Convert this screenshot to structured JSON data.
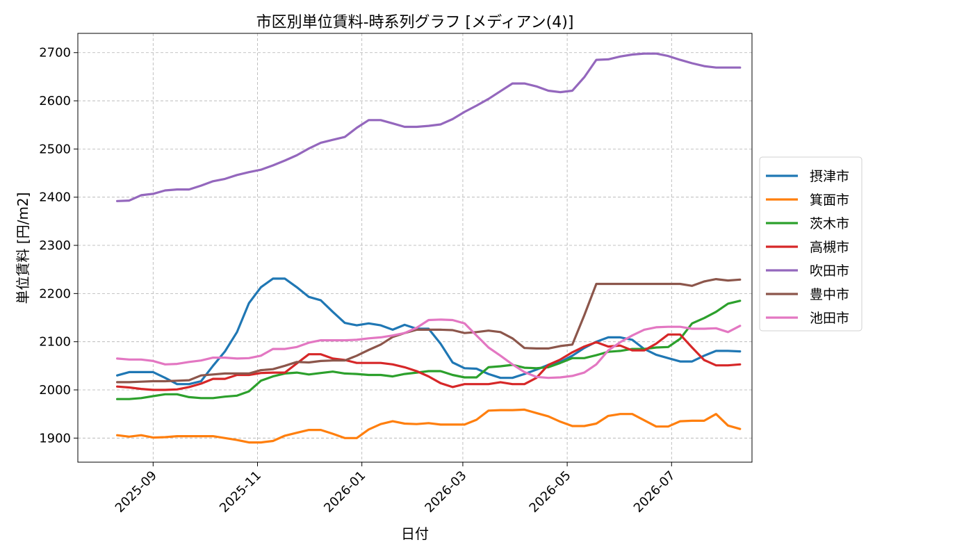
{
  "chart_data": {
    "type": "line",
    "title": "市区別単位賃料-時系列グラフ [メディアン(4)]",
    "xlabel": "日付",
    "ylabel": "単位賃料 [円/m2]",
    "ylim": [
      1850,
      2740
    ],
    "yticks": [
      1900,
      2000,
      2100,
      2200,
      2300,
      2400,
      2500,
      2600,
      2700
    ],
    "xlim": [
      "2025-07-19",
      "2026-08-17"
    ],
    "xticks": [
      "2025-09",
      "2025-11",
      "2026-01",
      "2026-03",
      "2026-05",
      "2026-07"
    ],
    "grid": true,
    "legend_position": "right",
    "x": [
      "2025-08-11",
      "2025-08-18",
      "2025-08-25",
      "2025-09-01",
      "2025-09-08",
      "2025-09-15",
      "2025-09-22",
      "2025-09-29",
      "2025-10-06",
      "2025-10-13",
      "2025-10-20",
      "2025-10-27",
      "2025-11-03",
      "2025-11-10",
      "2025-11-17",
      "2025-11-24",
      "2025-12-01",
      "2025-12-08",
      "2025-12-15",
      "2025-12-22",
      "2025-12-29",
      "2026-01-05",
      "2026-01-12",
      "2026-01-19",
      "2026-01-26",
      "2026-02-02",
      "2026-02-09",
      "2026-02-16",
      "2026-02-23",
      "2026-03-02",
      "2026-03-09",
      "2026-03-16",
      "2026-03-23",
      "2026-03-30",
      "2026-04-06",
      "2026-04-13",
      "2026-04-20",
      "2026-04-27",
      "2026-05-04",
      "2026-05-11",
      "2026-05-18",
      "2026-05-25",
      "2026-06-01",
      "2026-06-08",
      "2026-06-15",
      "2026-06-22",
      "2026-06-29",
      "2026-07-06",
      "2026-07-13",
      "2026-07-20",
      "2026-07-27",
      "2026-08-03",
      "2026-08-10"
    ],
    "series": [
      {
        "name": "摂津市",
        "color": "#1f77b4",
        "values": [
          2030,
          2037,
          2037,
          2037,
          2025,
          2012,
          2012,
          2018,
          2050,
          2080,
          2120,
          2180,
          2213,
          2231,
          2231,
          2213,
          2193,
          2186,
          2162,
          2139,
          2134,
          2138,
          2134,
          2125,
          2135,
          2127,
          2127,
          2096,
          2057,
          2045,
          2044,
          2033,
          2025,
          2025,
          2033,
          2042,
          2052,
          2058,
          2071,
          2087,
          2100,
          2109,
          2109,
          2104,
          2085,
          2073,
          2066,
          2059,
          2059,
          2071,
          2081,
          2081,
          2080
        ]
      },
      {
        "name": "箕面市",
        "color": "#ff7f0e",
        "values": [
          1906,
          1903,
          1906,
          1901,
          1902,
          1904,
          1904,
          1904,
          1904,
          1900,
          1896,
          1891,
          1891,
          1894,
          1905,
          1911,
          1917,
          1917,
          1909,
          1900,
          1900,
          1918,
          1929,
          1935,
          1930,
          1929,
          1931,
          1928,
          1928,
          1928,
          1938,
          1957,
          1958,
          1958,
          1959,
          1952,
          1945,
          1934,
          1925,
          1925,
          1930,
          1946,
          1950,
          1950,
          1937,
          1924,
          1924,
          1935,
          1936,
          1936,
          1950,
          1926,
          1919
        ]
      },
      {
        "name": "茨木市",
        "color": "#2ca02c",
        "values": [
          1981,
          1981,
          1983,
          1987,
          1991,
          1991,
          1985,
          1983,
          1983,
          1986,
          1988,
          1997,
          2019,
          2028,
          2034,
          2036,
          2032,
          2035,
          2038,
          2034,
          2033,
          2031,
          2031,
          2028,
          2033,
          2036,
          2039,
          2039,
          2031,
          2026,
          2026,
          2047,
          2049,
          2052,
          2046,
          2045,
          2047,
          2056,
          2066,
          2066,
          2072,
          2079,
          2081,
          2085,
          2085,
          2088,
          2089,
          2106,
          2138,
          2149,
          2162,
          2179,
          2185
        ]
      },
      {
        "name": "高槻市",
        "color": "#d62728",
        "values": [
          2007,
          2005,
          2002,
          2000,
          2000,
          2001,
          2006,
          2013,
          2023,
          2023,
          2031,
          2031,
          2035,
          2036,
          2036,
          2055,
          2074,
          2074,
          2065,
          2062,
          2056,
          2056,
          2056,
          2053,
          2047,
          2039,
          2028,
          2014,
          2006,
          2012,
          2012,
          2012,
          2016,
          2012,
          2012,
          2025,
          2052,
          2063,
          2078,
          2090,
          2099,
          2090,
          2092,
          2082,
          2082,
          2096,
          2115,
          2115,
          2088,
          2062,
          2051,
          2051,
          2053
        ]
      },
      {
        "name": "吹田市",
        "color": "#9467bd",
        "values": [
          2392,
          2393,
          2404,
          2407,
          2414,
          2416,
          2416,
          2424,
          2433,
          2438,
          2446,
          2452,
          2457,
          2466,
          2476,
          2487,
          2501,
          2513,
          2519,
          2525,
          2544,
          2560,
          2560,
          2553,
          2546,
          2546,
          2548,
          2551,
          2562,
          2577,
          2590,
          2604,
          2620,
          2636,
          2636,
          2630,
          2621,
          2618,
          2621,
          2649,
          2685,
          2686,
          2692,
          2696,
          2698,
          2698,
          2693,
          2685,
          2678,
          2672,
          2669,
          2669,
          2669
        ]
      },
      {
        "name": "豊中市",
        "color": "#8c564b",
        "values": [
          2016,
          2016,
          2017,
          2018,
          2018,
          2019,
          2020,
          2030,
          2032,
          2034,
          2034,
          2034,
          2041,
          2043,
          2050,
          2058,
          2057,
          2060,
          2061,
          2061,
          2071,
          2083,
          2094,
          2110,
          2118,
          2125,
          2125,
          2125,
          2124,
          2118,
          2120,
          2123,
          2120,
          2107,
          2087,
          2086,
          2086,
          2091,
          2094,
          2155,
          2220,
          2220,
          2220,
          2220,
          2220,
          2220,
          2220,
          2220,
          2216,
          2225,
          2230,
          2227,
          2229
        ]
      },
      {
        "name": "池田市",
        "color": "#e377c2",
        "values": [
          2065,
          2063,
          2063,
          2060,
          2053,
          2054,
          2058,
          2061,
          2067,
          2067,
          2065,
          2066,
          2071,
          2085,
          2085,
          2089,
          2098,
          2103,
          2103,
          2103,
          2104,
          2107,
          2109,
          2113,
          2118,
          2129,
          2145,
          2146,
          2145,
          2138,
          2113,
          2088,
          2071,
          2053,
          2037,
          2027,
          2025,
          2026,
          2029,
          2036,
          2053,
          2082,
          2099,
          2113,
          2125,
          2130,
          2131,
          2131,
          2127,
          2127,
          2128,
          2120,
          2133
        ]
      }
    ]
  }
}
